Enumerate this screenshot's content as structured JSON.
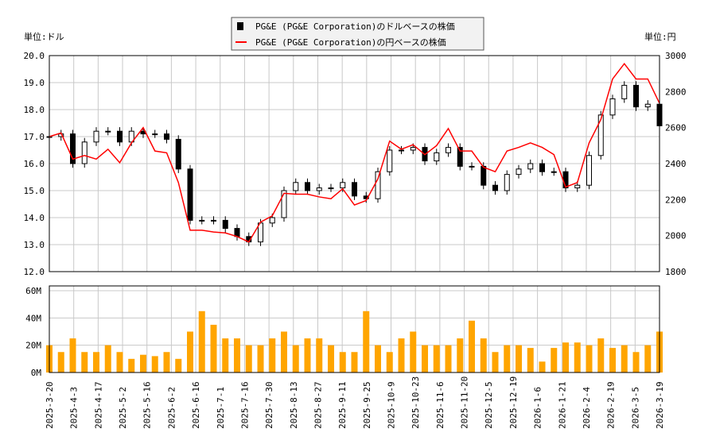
{
  "chart_data": [
    {
      "type": "candlestick+line",
      "legend": [
        "PG&E (PG&E Corporation)のドルベースの株価",
        "PG&E (PG&E Corporation)の円ベースの株価"
      ],
      "legend_placement": "top-center",
      "left_unit": "単位:ドル",
      "right_unit": "単位:円",
      "ylim_left": [
        12,
        20
      ],
      "ylim_right": [
        1800,
        3000
      ],
      "yticks_left": [
        "12.0",
        "13.0",
        "14.0",
        "15.0",
        "16.0",
        "17.0",
        "18.0",
        "19.0",
        "20.0"
      ],
      "yticks_right": [
        "1800",
        "2000",
        "2200",
        "2400",
        "2600",
        "2800",
        "3000"
      ],
      "grid": true,
      "colors": {
        "candle": "#000000",
        "yen_line": "#ff0000"
      },
      "usd_close": [
        17.0,
        17.1,
        16.0,
        16.8,
        17.2,
        17.2,
        16.8,
        17.2,
        17.1,
        17.1,
        16.9,
        15.8,
        13.9,
        13.9,
        13.9,
        13.6,
        13.3,
        13.1,
        13.8,
        14.0,
        15.0,
        15.3,
        15.0,
        15.1,
        15.1,
        15.3,
        14.8,
        14.7,
        15.7,
        16.5,
        16.5,
        16.6,
        16.1,
        16.4,
        16.6,
        15.9,
        15.9,
        15.2,
        15.0,
        15.6,
        15.8,
        16.0,
        15.7,
        15.7,
        15.1,
        15.2,
        16.3,
        17.8,
        18.4,
        18.9,
        18.1,
        18.2,
        17.4
      ],
      "jpy_close": [
        2550,
        2570,
        2425,
        2445,
        2425,
        2480,
        2405,
        2515,
        2600,
        2470,
        2460,
        2295,
        2030,
        2030,
        2020,
        2015,
        1995,
        1965,
        2075,
        2110,
        2235,
        2230,
        2230,
        2215,
        2205,
        2260,
        2170,
        2195,
        2315,
        2525,
        2480,
        2505,
        2450,
        2500,
        2595,
        2470,
        2470,
        2380,
        2355,
        2470,
        2490,
        2515,
        2490,
        2450,
        2270,
        2295,
        2515,
        2645,
        2870,
        2955,
        2870,
        2870,
        2735
      ]
    },
    {
      "type": "bar",
      "ylim": [
        0,
        60000000
      ],
      "yticks": [
        "0M",
        "20M",
        "40M",
        "60M"
      ],
      "colors": {
        "bar": "#ffa500"
      },
      "volume_millions": [
        20,
        15,
        25,
        15,
        15,
        20,
        15,
        10,
        13,
        12,
        15,
        10,
        30,
        45,
        35,
        25,
        25,
        20,
        20,
        25,
        30,
        20,
        25,
        25,
        20,
        15,
        15,
        45,
        20,
        15,
        25,
        30,
        20,
        20,
        20,
        25,
        38,
        25,
        15,
        20,
        20,
        18,
        8,
        18,
        22,
        22,
        20,
        25,
        18,
        20,
        15,
        20,
        30
      ]
    }
  ],
  "xticks": [
    "2025-3-20",
    "2025-4-3",
    "2025-4-17",
    "2025-5-2",
    "2025-5-16",
    "2025-6-2",
    "2025-6-16",
    "2025-7-1",
    "2025-7-16",
    "2025-7-30",
    "2025-8-13",
    "2025-8-27",
    "2025-9-11",
    "2025-9-25",
    "2025-10-9",
    "2025-10-23",
    "2025-11-6",
    "2025-11-20",
    "2025-12-5",
    "2025-12-19",
    "2026-1-6",
    "2026-1-21",
    "2026-2-4",
    "2026-2-19",
    "2026-3-5",
    "2026-3-19"
  ]
}
